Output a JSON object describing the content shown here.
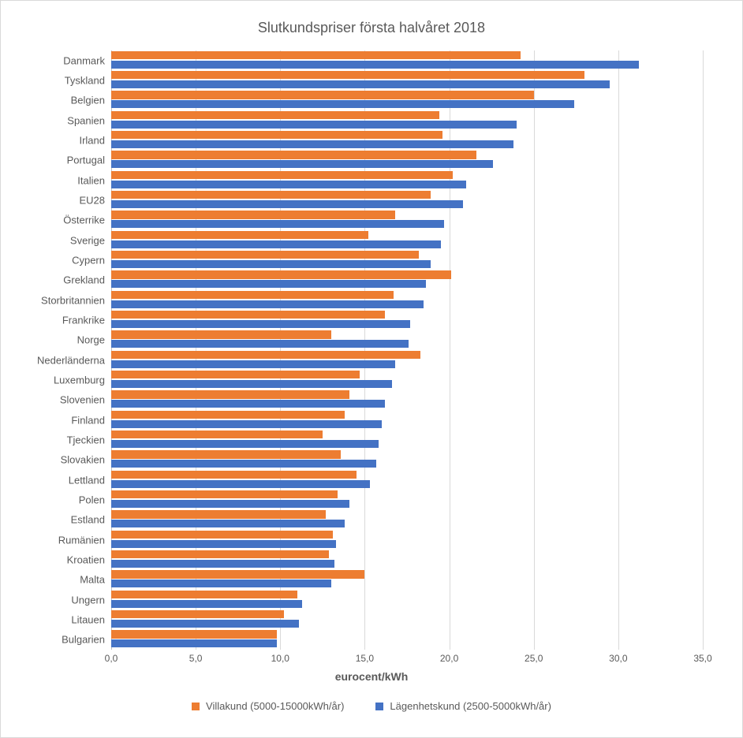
{
  "chart": {
    "type": "bar-horizontal-grouped",
    "title": "Slutkundspriser första halvåret 2018",
    "title_fontsize": 18,
    "title_color": "#595959",
    "background_color": "#ffffff",
    "border_color": "#d9d9d9",
    "label_color": "#595959",
    "label_fontsize": 13,
    "tick_fontsize": 12,
    "axis_title": "eurocent/kWh",
    "axis_title_fontsize": 14,
    "xlim": [
      0.0,
      35.0
    ],
    "xtick_step": 5.0,
    "xticks": [
      "0,0",
      "5,0",
      "10,0",
      "15,0",
      "20,0",
      "25,0",
      "30,0",
      "35,0"
    ],
    "grid_color": "#d9d9d9",
    "axis_line_color": "#bfbfbf",
    "bar_gap_ratio": 0.14,
    "series": [
      {
        "key": "villa",
        "label": "Villakund (5000-15000kWh/år)",
        "color": "#ed7d31"
      },
      {
        "key": "lagen",
        "label": "Lägenhetskund (2500-5000kWh/år)",
        "color": "#4472c4"
      }
    ],
    "categories": [
      {
        "name": "Danmark",
        "villa": 24.2,
        "lagen": 31.2
      },
      {
        "name": "Tyskland",
        "villa": 28.0,
        "lagen": 29.5
      },
      {
        "name": "Belgien",
        "villa": 25.0,
        "lagen": 27.4
      },
      {
        "name": "Spanien",
        "villa": 19.4,
        "lagen": 24.0
      },
      {
        "name": "Irland",
        "villa": 19.6,
        "lagen": 23.8
      },
      {
        "name": "Portugal",
        "villa": 21.6,
        "lagen": 22.6
      },
      {
        "name": "Italien",
        "villa": 20.2,
        "lagen": 21.0
      },
      {
        "name": "EU28",
        "villa": 18.9,
        "lagen": 20.8
      },
      {
        "name": "Österrike",
        "villa": 16.8,
        "lagen": 19.7
      },
      {
        "name": "Sverige",
        "villa": 15.2,
        "lagen": 19.5
      },
      {
        "name": "Cypern",
        "villa": 18.2,
        "lagen": 18.9
      },
      {
        "name": "Grekland",
        "villa": 20.1,
        "lagen": 18.6
      },
      {
        "name": "Storbritannien",
        "villa": 16.7,
        "lagen": 18.5
      },
      {
        "name": "Frankrike",
        "villa": 16.2,
        "lagen": 17.7
      },
      {
        "name": "Norge",
        "villa": 13.0,
        "lagen": 17.6
      },
      {
        "name": "Nederländerna",
        "villa": 18.3,
        "lagen": 16.8
      },
      {
        "name": "Luxemburg",
        "villa": 14.7,
        "lagen": 16.6
      },
      {
        "name": "Slovenien",
        "villa": 14.1,
        "lagen": 16.2
      },
      {
        "name": "Finland",
        "villa": 13.8,
        "lagen": 16.0
      },
      {
        "name": "Tjeckien",
        "villa": 12.5,
        "lagen": 15.8
      },
      {
        "name": "Slovakien",
        "villa": 13.6,
        "lagen": 15.7
      },
      {
        "name": "Lettland",
        "villa": 14.5,
        "lagen": 15.3
      },
      {
        "name": "Polen",
        "villa": 13.4,
        "lagen": 14.1
      },
      {
        "name": "Estland",
        "villa": 12.7,
        "lagen": 13.8
      },
      {
        "name": "Rumänien",
        "villa": 13.1,
        "lagen": 13.3
      },
      {
        "name": "Kroatien",
        "villa": 12.9,
        "lagen": 13.2
      },
      {
        "name": "Malta",
        "villa": 15.0,
        "lagen": 13.0
      },
      {
        "name": "Ungern",
        "villa": 11.0,
        "lagen": 11.3
      },
      {
        "name": "Litauen",
        "villa": 10.2,
        "lagen": 11.1
      },
      {
        "name": "Bulgarien",
        "villa": 9.8,
        "lagen": 9.8
      }
    ]
  }
}
